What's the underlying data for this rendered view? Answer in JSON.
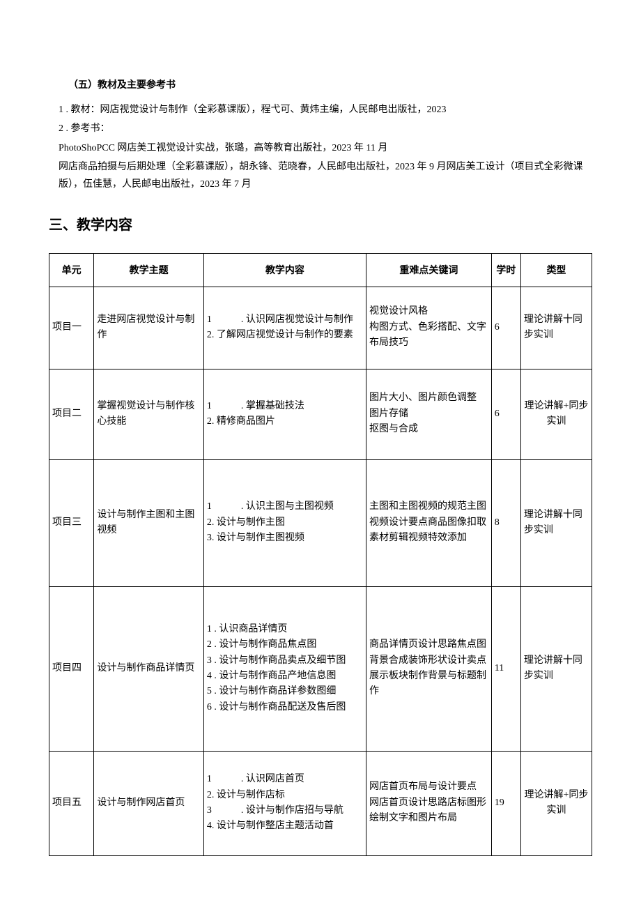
{
  "section5": {
    "title": "（五）教材及主要参考书",
    "item1": "1 . 教材：网店视觉设计与制作（全彩慕课版），程弋可、黄炜主编，人民邮电出版社，2023",
    "item2": "2 . 参考书：",
    "ref1": "PhotoShoPCC 网店美工视觉设计实战，张璐，高等教育出版社，2023 年 11 月",
    "ref2": "网店商品拍摄与后期处理（全彩慕课版），胡永锋、范晓春，人民邮电出版社，2023 年 9 月网店美工设计（项目式全彩微课版），伍佳慧，人民邮电出版社，2023 年 7 月"
  },
  "section3_title": "三、教学内容",
  "table": {
    "headers": {
      "unit": "单元",
      "topic": "教学主题",
      "content": "教学内容",
      "keywords": "重难点关键词",
      "hours": "学时",
      "type": "类型"
    },
    "rows": [
      {
        "unit": "项目一",
        "topic": "走进网店视觉设计与制作",
        "content": "1　　　. 认识网店视觉设计与制作\n2. 了解网店视觉设计与制作的要素",
        "keywords": "视觉设计风格\n构图方式、色彩搭配、文字布局技巧",
        "hours": "6",
        "type": "理论讲解十同步实训"
      },
      {
        "unit": "项目二",
        "topic": "掌握视觉设计与制作核心技能",
        "content": "1　　　. 掌握基础技法\n2. 精修商品图片",
        "keywords": "图片大小、图片颜色调整\n图片存储\n抠图与合成",
        "hours": "6",
        "type": "理论讲解+同步实训",
        "type_align": "center"
      },
      {
        "unit": "项目三",
        "topic": "设计与制作主图和主图视频",
        "content": "1　　　. 认识主图与主图视频\n2. 设计与制作主图\n3. 设计与制作主图视频",
        "keywords": "主图和主图视频的规范主图视频设计要点商品图像扣取素材剪辑视频特效添加",
        "hours": "8",
        "type": "理论讲解十同步实训"
      },
      {
        "unit": "项目四",
        "topic": "设计与制作商品详情页",
        "content": "1 . 认识商品详情页\n2 . 设计与制作商品焦点图\n3 . 设计与制作商品卖点及细节图\n4 . 设计与制作商品产地信息图\n5 . 设计与制作商品详参数图细\n6 . 设计与制作商品配送及售后图",
        "keywords": "商品详情页设计思路焦点图背景合成装饰形状设计卖点展示板块制作背景与标题制作",
        "hours": "11",
        "type": "理论讲解十同步实训"
      },
      {
        "unit": "项目五",
        "topic": "设计与制作网店首页",
        "content": "1　　　. 认识网店首页\n2. 设计与制作店标\n3　　　. 设计与制作店招与导航\n4. 设计与制作整店主题活动首",
        "keywords": "网店首页布局与设计要点\n网店首页设计思路店标图形绘制文字和图片布局",
        "hours": "19",
        "type": "理论讲解+同步实训",
        "type_align": "center"
      }
    ]
  }
}
